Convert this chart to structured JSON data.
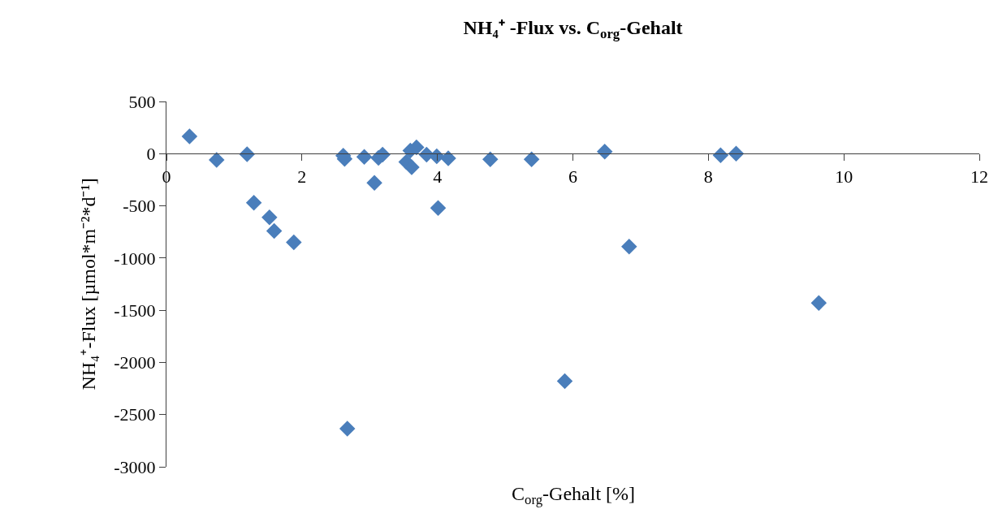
{
  "chart_data": {
    "type": "scatter",
    "title": "NH₄⁺ -Flux vs. C$_{org}$-Gehalt",
    "xlabel": "C$_{org}$-Gehalt [%]",
    "ylabel": "NH₄⁺-Flux [µmol*m⁻²*d⁻¹]",
    "x": [
      0.34,
      0.74,
      1.19,
      1.29,
      1.52,
      1.59,
      1.88,
      2.61,
      2.63,
      2.92,
      3.07,
      3.13,
      3.19,
      3.54,
      3.62,
      3.6,
      3.69,
      3.84,
      3.99,
      4.01,
      4.16,
      4.78,
      5.39,
      6.47,
      8.18,
      8.41,
      6.83,
      9.63,
      5.88,
      2.67
    ],
    "series": [
      {
        "color": "#4a7ebb",
        "values": [
          165,
          -60,
          -5,
          -470,
          -610,
          -740,
          -850,
          -20,
          -50,
          -30,
          -280,
          -40,
          -10,
          -80,
          -130,
          30,
          60,
          -10,
          -25,
          -520,
          -45,
          -55,
          -55,
          20,
          -15,
          0,
          -890,
          -1430,
          -2180,
          -2635
        ]
      }
    ],
    "xlim": [
      0,
      12
    ],
    "xticks": [
      0,
      2,
      4,
      6,
      8,
      10,
      12
    ],
    "ylim": [
      -3000,
      500
    ],
    "yticks": [
      500,
      0,
      -500,
      -1000,
      -1500,
      -2000,
      -2500,
      -3000
    ],
    "marker": "diamond"
  }
}
